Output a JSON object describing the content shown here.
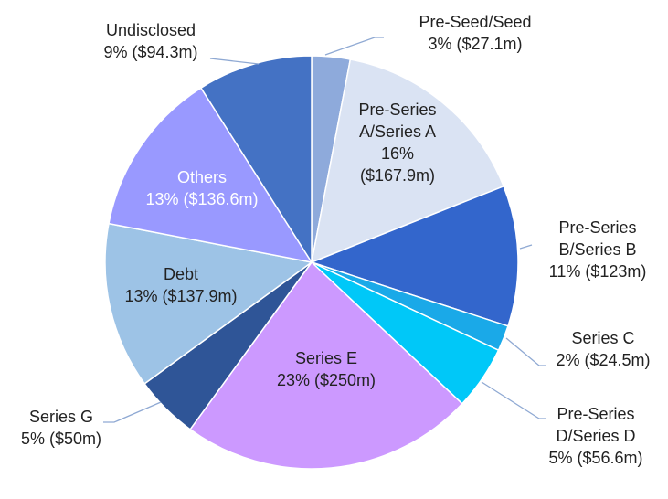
{
  "chart_data": {
    "type": "pie",
    "title": "",
    "start": "12 o'clock",
    "direction": "clockwise",
    "slices": [
      {
        "name": "Pre-Seed/Seed",
        "percent": 3,
        "value": "$27.1m",
        "label_lines": [
          "Pre-Seed/Seed",
          "3% ($27.1m)"
        ],
        "color": "#8eaadb",
        "label_color": "#222222"
      },
      {
        "name": "Pre-Series A/Series A",
        "percent": 16,
        "value": "$167.9m",
        "label_lines": [
          "Pre-Series",
          "A/Series A",
          "16%",
          "($167.9m)"
        ],
        "color": "#dae3f3",
        "label_color": "#222222"
      },
      {
        "name": "Pre-Series B/Series B",
        "percent": 11,
        "value": "$123m",
        "label_lines": [
          "Pre-Series",
          "B/Series B",
          "11% ($123m)"
        ],
        "color": "#3366cc",
        "label_color": "#222222"
      },
      {
        "name": "Series C",
        "percent": 2,
        "value": "$24.5m",
        "label_lines": [
          "Series C",
          "2% ($24.5m)"
        ],
        "color": "#1aa9e8",
        "label_color": "#222222"
      },
      {
        "name": "Pre-Series D/Series D",
        "percent": 5,
        "value": "$56.6m",
        "label_lines": [
          "Pre-Series",
          "D/Series D",
          "5% ($56.6m)"
        ],
        "color": "#00c8f8",
        "label_color": "#222222"
      },
      {
        "name": "Series E",
        "percent": 23,
        "value": "$250m",
        "label_lines": [
          "Series E",
          "23% ($250m)"
        ],
        "color": "#cc99ff",
        "label_color": "#222222"
      },
      {
        "name": "Series G",
        "percent": 5,
        "value": "$50m",
        "label_lines": [
          "Series G",
          "5% ($50m)"
        ],
        "color": "#2f5597",
        "label_color": "#222222"
      },
      {
        "name": "Debt",
        "percent": 13,
        "value": "$137.9m",
        "label_lines": [
          "Debt",
          "13% ($137.9m)"
        ],
        "color": "#9dc3e6",
        "label_color": "#222222"
      },
      {
        "name": "Others",
        "percent": 13,
        "value": "$136.6m",
        "label_lines": [
          "Others",
          "13% ($136.6m)"
        ],
        "color": "#9999ff",
        "label_color": "#ffffff"
      },
      {
        "name": "Undisclosed",
        "percent": 9,
        "value": "$94.3m",
        "label_lines": [
          "Undisclosed",
          "9% ($94.3m)"
        ],
        "color": "#4472c4",
        "label_color": "#222222"
      }
    ]
  }
}
